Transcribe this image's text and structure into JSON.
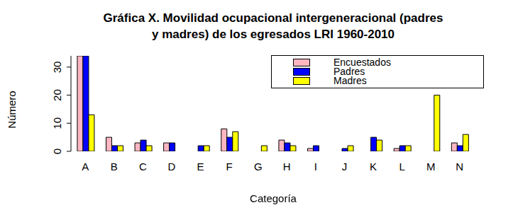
{
  "chart_data": {
    "type": "bar",
    "title": "Gráfica X. Movilidad ocupacional intergeneracional (padres\ny madres) de los egresados LRI 1960-2010",
    "x_label": "Categoría",
    "y_label": "Número",
    "categories": [
      "A",
      "B",
      "C",
      "D",
      "E",
      "F",
      "G",
      "H",
      "I",
      "J",
      "K",
      "L",
      "M",
      "N"
    ],
    "series": [
      {
        "name": "Encuestados",
        "color": "#ffb6c1",
        "values": [
          34,
          5,
          3,
          3,
          0,
          8,
          0,
          4,
          1,
          0,
          0,
          1,
          0,
          3
        ]
      },
      {
        "name": "Padres",
        "color": "#0000ff",
        "values": [
          34,
          2,
          4,
          3,
          2,
          5,
          0,
          3,
          2,
          1,
          5,
          2,
          0,
          2
        ]
      },
      {
        "name": "Madres",
        "color": "#ffff00",
        "values": [
          13,
          2,
          2,
          0,
          2,
          7,
          2,
          2,
          0,
          2,
          4,
          2,
          20,
          6
        ]
      }
    ],
    "ylim": [
      0,
      34
    ],
    "yticks": [
      0,
      10,
      20,
      30
    ],
    "grid": false,
    "legend": "top-right"
  }
}
